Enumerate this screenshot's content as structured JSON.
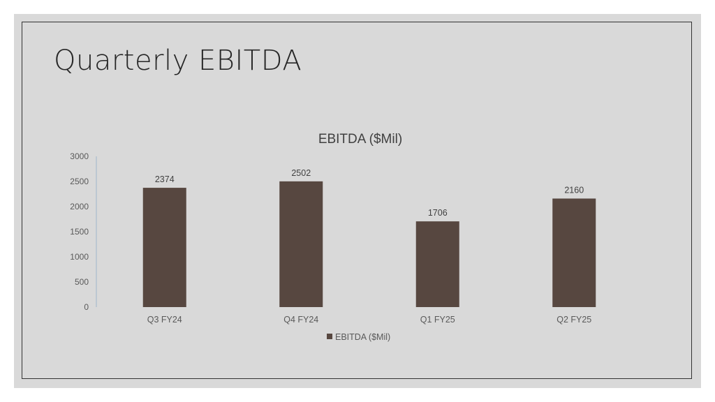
{
  "slide": {
    "title": "Quarterly EBITDA"
  },
  "colors": {
    "bar": "#574740",
    "axis": "#9fb6cc",
    "background": "#d9d9d9"
  },
  "chart_data": {
    "type": "bar",
    "title": "EBITDA ($Mil)",
    "categories": [
      "Q3 FY24",
      "Q4 FY24",
      "Q1 FY25",
      "Q2 FY25"
    ],
    "series": [
      {
        "name": "EBITDA ($Mil)",
        "values": [
          2374,
          2502,
          1706,
          2160
        ]
      }
    ],
    "yticks": [
      0,
      500,
      1000,
      1500,
      2000,
      2500,
      3000
    ],
    "ylim": [
      0,
      3000
    ],
    "data_labels": [
      "2374",
      "2502",
      "1706",
      "2160"
    ],
    "legend": "bottom",
    "grid": false
  }
}
